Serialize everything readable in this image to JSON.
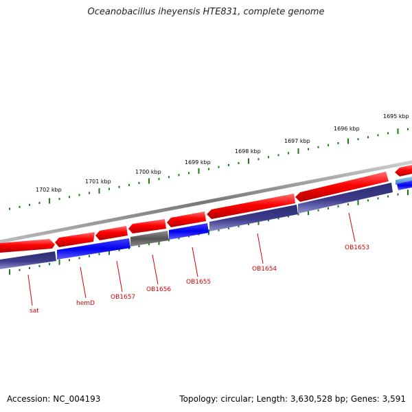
{
  "title": "Oceanobacillus iheyensis HTE831, complete genome",
  "footer": {
    "accession": "Accession: NC_004193",
    "topology": "Topology: circular; Length: 3,630,528 bp; Genes: 3,591"
  },
  "colors": {
    "forward": "#ff0000",
    "reverse_blue": "#0000ee",
    "reverse_navy": "#3c3c8c",
    "other": "#666666",
    "backbone": "#888888",
    "tick": "#1a7a1a",
    "label": "#cc0000"
  },
  "kbp_ticks": [
    {
      "label": "1702 kbp"
    },
    {
      "label": "1701 kbp"
    },
    {
      "label": "1700 kbp"
    },
    {
      "label": "1699 kbp"
    },
    {
      "label": "1698 kbp"
    },
    {
      "label": "1697 kbp"
    },
    {
      "label": "1696 kbp"
    },
    {
      "label": "1695 kbp"
    }
  ],
  "gene_labels": [
    {
      "text": "sat"
    },
    {
      "text": "hemD"
    },
    {
      "text": "OB1657"
    },
    {
      "text": "OB1656"
    },
    {
      "text": "OB1655"
    },
    {
      "text": "OB1654"
    },
    {
      "text": "OB1653"
    }
  ]
}
